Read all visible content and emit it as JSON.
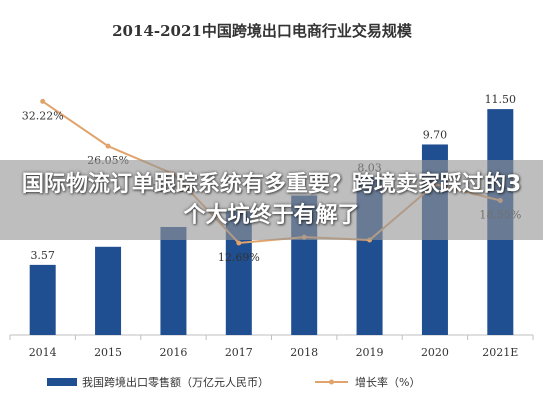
{
  "overlay": {
    "headline": "国际物流订单跟踪系统有多重要？跨境卖家踩过的3个大坑终于有解了"
  },
  "colors": {
    "bar": "#1f4e91",
    "line": "#e0a36c",
    "axis": "#bfbfbf",
    "text": "#333333"
  },
  "chart_data": {
    "type": "bar",
    "title": "2014-2021中国跨境出口电商行业交易规模",
    "categories": [
      "2014",
      "2015",
      "2016",
      "2017",
      "2018",
      "2019",
      "2020",
      "2021E"
    ],
    "series": [
      {
        "name": "我国跨境出口零售额（万亿元人民币）",
        "type": "bar",
        "values": [
          3.57,
          4.49,
          5.5,
          6.3,
          7.1,
          8.03,
          9.7,
          11.5
        ],
        "labels": [
          "3.57",
          "",
          "",
          "",
          "",
          "8.03",
          "9.70",
          "11.50"
        ]
      },
      {
        "name": "增长率（%）",
        "type": "line",
        "values": [
          32.22,
          26.05,
          22.22,
          12.69,
          13.5,
          13.1,
          20.8,
          18.55
        ],
        "labels": [
          "32.22%",
          "26.05%",
          "22.22%",
          "12.69%",
          "",
          "",
          "",
          "18.55%"
        ]
      }
    ],
    "bar_ylim": [
      0,
      14
    ],
    "line_ylim": [
      0,
      40
    ],
    "legend": "bottom"
  }
}
